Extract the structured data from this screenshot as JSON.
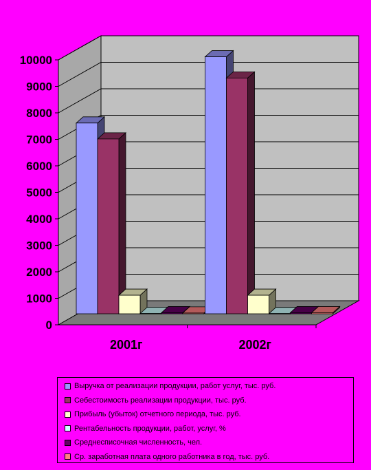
{
  "chart_data": {
    "type": "bar",
    "categories": [
      "2001г",
      "2002г"
    ],
    "y_ticks": [
      "0",
      "1000",
      "2000",
      "3000",
      "4000",
      "5000",
      "6000",
      "7000",
      "8000",
      "9000",
      "10000"
    ],
    "ylim": [
      0,
      10000
    ],
    "grid": true,
    "legend_position": "bottom",
    "series": [
      {
        "name": "Выручка от реализации продукции, работ услуг, тыс. руб.",
        "values": [
          7200,
          9700
        ],
        "color": "#9999ff"
      },
      {
        "name": "Себестоимость реализации продукции, тыс. руб.",
        "values": [
          6600,
          8900
        ],
        "color": "#993366"
      },
      {
        "name": "Прибыль (убыток) отчетного периода, тыс. руб.",
        "values": [
          700,
          700
        ],
        "color": "#ffffcc"
      },
      {
        "name": "Рентабельность продукции, работ, услуг, %",
        "values": [
          10,
          8
        ],
        "color": "#ccffff"
      },
      {
        "name": "Среднесписочная численность, чел.",
        "values": [
          40,
          40
        ],
        "color": "#660066"
      },
      {
        "name": "Ср. заработная плата одного работника в год, тыс. руб.",
        "values": [
          30,
          40
        ],
        "color": "#ff8080"
      }
    ]
  }
}
